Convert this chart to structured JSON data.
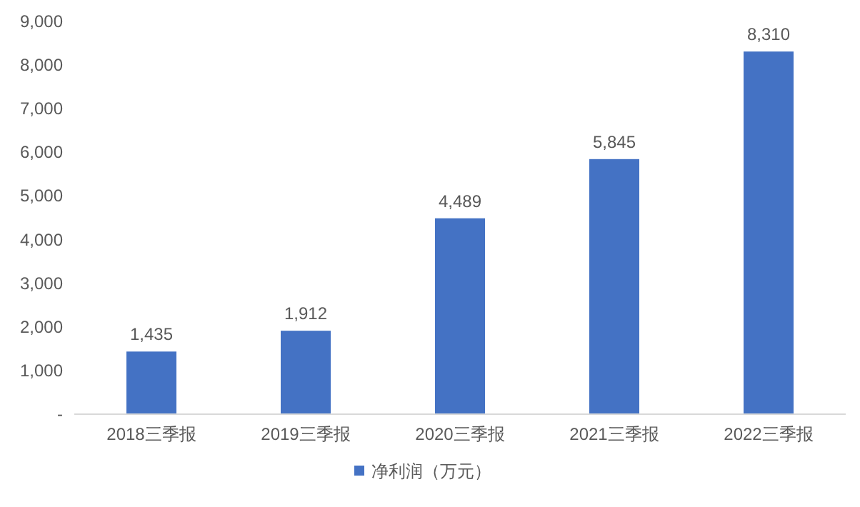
{
  "chart_data": {
    "type": "bar",
    "categories": [
      "2018三季报",
      "2019三季报",
      "2020三季报",
      "2021三季报",
      "2022三季报"
    ],
    "series": [
      {
        "name": "净利润（万元）",
        "color": "#4472c4",
        "values": [
          1435,
          1912,
          4489,
          5845,
          8310
        ]
      }
    ],
    "value_labels": [
      "1,435",
      "1,912",
      "4,489",
      "5,845",
      "8,310"
    ],
    "ylim": [
      0,
      9000
    ],
    "yticks": [
      {
        "value": 0,
        "label": "-"
      },
      {
        "value": 1000,
        "label": "1,000"
      },
      {
        "value": 2000,
        "label": "2,000"
      },
      {
        "value": 3000,
        "label": "3,000"
      },
      {
        "value": 4000,
        "label": "4,000"
      },
      {
        "value": 5000,
        "label": "5,000"
      },
      {
        "value": 6000,
        "label": "6,000"
      },
      {
        "value": 7000,
        "label": "7,000"
      },
      {
        "value": 8000,
        "label": "8,000"
      },
      {
        "value": 9000,
        "label": "9,000"
      }
    ],
    "grid": false,
    "legend": "bottom"
  }
}
